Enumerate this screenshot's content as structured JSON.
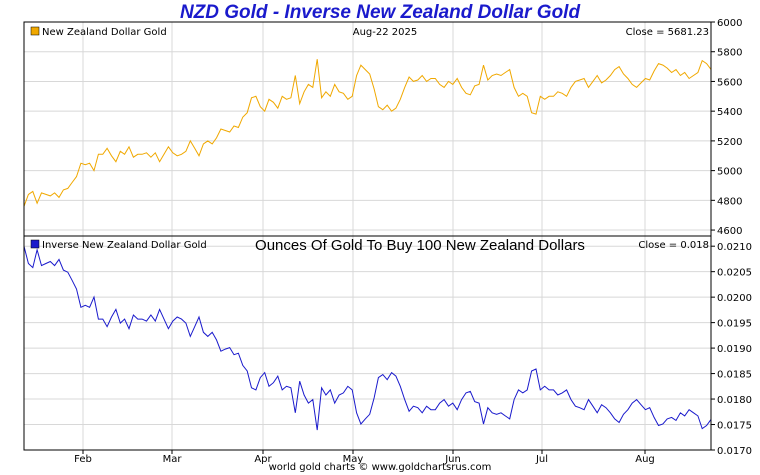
{
  "title": "NZD Gold - Inverse New Zealand Dollar Gold",
  "footer": "world gold charts © www.goldchartsrus.com",
  "colors": {
    "gold_series": "#f0a800",
    "inverse_series": "#1a1acc",
    "grid": "#d8d8d8",
    "title": "#1a1acc"
  },
  "chart_data": [
    {
      "type": "line",
      "panel": "top",
      "legend": "New Zealand Dollar Gold",
      "legend_icon": "orange-square",
      "date_label": "Aug-22  2025",
      "close_label": "Close = 5681.23",
      "ylim": [
        4560,
        6000
      ],
      "yticks": [
        4600,
        4800,
        5000,
        5200,
        5400,
        5600,
        5800,
        6000
      ],
      "xlabels": [
        "Feb",
        "Mar",
        "Apr",
        "May",
        "Jun",
        "Jul",
        "Aug"
      ],
      "grid": true,
      "series": [
        {
          "name": "New Zealand Dollar Gold",
          "values": [
            4760,
            4840,
            4860,
            4780,
            4850,
            4840,
            4830,
            4850,
            4820,
            4870,
            4880,
            4920,
            4960,
            5050,
            5040,
            5050,
            5000,
            5110,
            5110,
            5150,
            5100,
            5060,
            5130,
            5110,
            5160,
            5090,
            5110,
            5110,
            5120,
            5090,
            5120,
            5060,
            5110,
            5160,
            5120,
            5100,
            5110,
            5130,
            5200,
            5150,
            5100,
            5180,
            5200,
            5180,
            5220,
            5280,
            5270,
            5260,
            5300,
            5290,
            5360,
            5390,
            5490,
            5500,
            5430,
            5400,
            5480,
            5460,
            5420,
            5500,
            5480,
            5490,
            5640,
            5450,
            5530,
            5580,
            5560,
            5750,
            5490,
            5530,
            5500,
            5580,
            5530,
            5520,
            5480,
            5500,
            5640,
            5710,
            5680,
            5650,
            5550,
            5430,
            5410,
            5440,
            5400,
            5420,
            5480,
            5560,
            5630,
            5600,
            5610,
            5640,
            5600,
            5620,
            5620,
            5580,
            5560,
            5600,
            5580,
            5620,
            5560,
            5520,
            5510,
            5570,
            5580,
            5710,
            5610,
            5640,
            5650,
            5640,
            5660,
            5680,
            5560,
            5500,
            5520,
            5500,
            5390,
            5380,
            5500,
            5480,
            5500,
            5500,
            5530,
            5520,
            5500,
            5560,
            5600,
            5610,
            5620,
            5560,
            5600,
            5640,
            5590,
            5610,
            5640,
            5680,
            5700,
            5650,
            5620,
            5580,
            5560,
            5590,
            5620,
            5610,
            5670,
            5720,
            5710,
            5690,
            5660,
            5680,
            5640,
            5660,
            5620,
            5640,
            5660,
            5740,
            5720,
            5681
          ]
        }
      ]
    },
    {
      "type": "line",
      "panel": "bottom",
      "legend": "Inverse New Zealand Dollar Gold",
      "legend_icon": "blue-square",
      "subtitle": "Ounces Of Gold To Buy 100 New Zealand Dollars",
      "close_label": "Close = 0.018",
      "ylim": [
        0.017,
        0.0212
      ],
      "yticks": [
        0.017,
        0.0175,
        0.018,
        0.0185,
        0.019,
        0.0195,
        0.02,
        0.0205,
        0.021
      ],
      "ytick_labels": [
        "0.0170",
        "0.0175",
        "0.0180",
        "0.0185",
        "0.0190",
        "0.0195",
        "0.0200",
        "0.0205",
        "0.0210"
      ],
      "xlabels": [
        "Feb",
        "Mar",
        "Apr",
        "May",
        "Jun",
        "Jul",
        "Aug"
      ],
      "grid": true,
      "series": [
        {
          "name": "Inverse New Zealand Dollar Gold",
          "values": [
            0.021,
            0.02066,
            0.02058,
            0.02093,
            0.02062,
            0.02066,
            0.0207,
            0.02062,
            0.02074,
            0.02053,
            0.02049,
            0.02033,
            0.02016,
            0.0198,
            0.01984,
            0.0198,
            0.02,
            0.01957,
            0.01957,
            0.01942,
            0.01961,
            0.01976,
            0.01949,
            0.01957,
            0.01938,
            0.01965,
            0.01957,
            0.01957,
            0.01953,
            0.01965,
            0.01953,
            0.01976,
            0.01957,
            0.01938,
            0.01953,
            0.01961,
            0.01957,
            0.01949,
            0.01923,
            0.01942,
            0.01961,
            0.01931,
            0.01923,
            0.01931,
            0.01916,
            0.01894,
            0.01898,
            0.01901,
            0.01887,
            0.0189,
            0.01866,
            0.01855,
            0.01822,
            0.01818,
            0.01842,
            0.01852,
            0.01825,
            0.01832,
            0.01845,
            0.01818,
            0.01825,
            0.01822,
            0.01773,
            0.01835,
            0.01808,
            0.01792,
            0.01799,
            0.01739,
            0.01822,
            0.01808,
            0.01818,
            0.01792,
            0.01808,
            0.01812,
            0.01825,
            0.01818,
            0.01773,
            0.01751,
            0.01761,
            0.0177,
            0.01802,
            0.01842,
            0.01848,
            0.01838,
            0.01852,
            0.01845,
            0.01825,
            0.01799,
            0.01776,
            0.01786,
            0.01783,
            0.01773,
            0.01786,
            0.01779,
            0.01779,
            0.01792,
            0.01799,
            0.01786,
            0.01792,
            0.01779,
            0.01799,
            0.01812,
            0.01815,
            0.01795,
            0.01792,
            0.01751,
            0.01783,
            0.01773,
            0.0177,
            0.01773,
            0.01767,
            0.01761,
            0.01799,
            0.01818,
            0.01812,
            0.01818,
            0.01855,
            0.01859,
            0.01818,
            0.01825,
            0.01818,
            0.01818,
            0.01808,
            0.01812,
            0.01818,
            0.01799,
            0.01786,
            0.01783,
            0.01779,
            0.01799,
            0.01786,
            0.01773,
            0.01789,
            0.01783,
            0.01773,
            0.01761,
            0.01754,
            0.0177,
            0.01779,
            0.01792,
            0.01799,
            0.01789,
            0.01779,
            0.01783,
            0.01764,
            0.01748,
            0.01751,
            0.01761,
            0.01764,
            0.01758,
            0.01773,
            0.01767,
            0.01779,
            0.01773,
            0.01767,
            0.01742,
            0.01748,
            0.0176
          ]
        }
      ]
    }
  ]
}
